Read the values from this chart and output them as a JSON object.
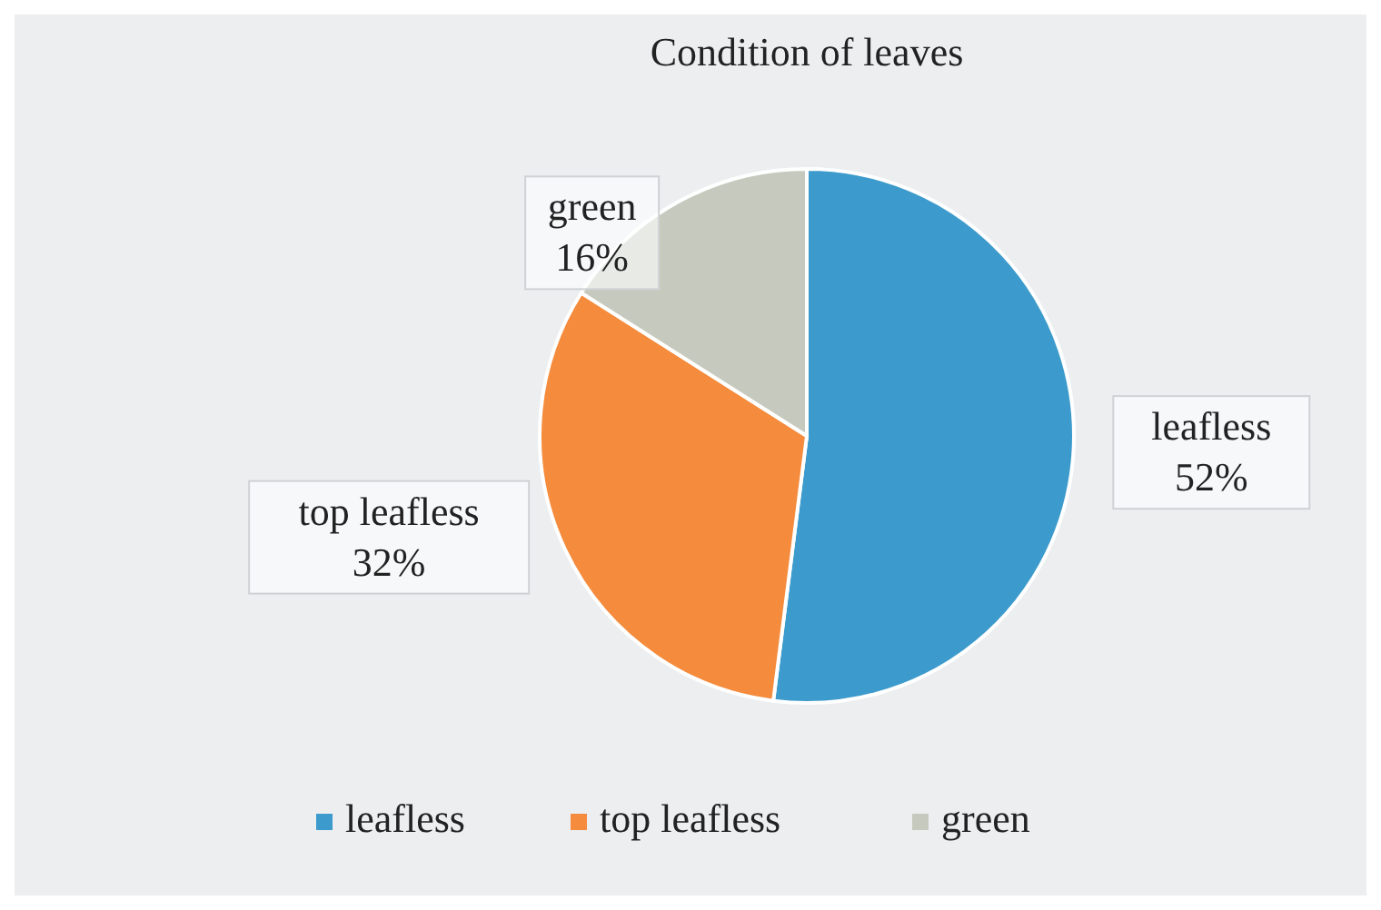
{
  "chart_data": {
    "type": "pie",
    "title": "Condition of leaves",
    "categories": [
      "leafless",
      "top leafless",
      "green"
    ],
    "values": [
      52,
      32,
      16
    ],
    "colors": [
      "#3c9bcc",
      "#f58b3c",
      "#c6cabe"
    ],
    "value_labels": [
      "52%",
      "32%",
      "16%"
    ],
    "legend": "bottom"
  }
}
